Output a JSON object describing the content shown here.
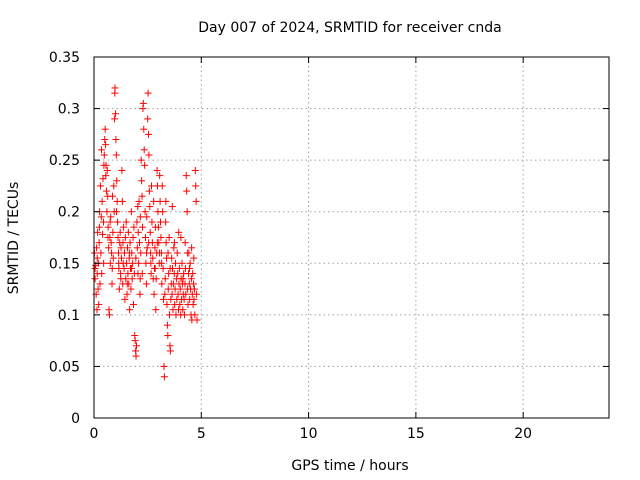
{
  "chart_data": {
    "type": "scatter",
    "title": "Day 007 of 2024, SRMTID for receiver cnda",
    "xlabel": "GPS time / hours",
    "ylabel": "SRMTID / TECUs",
    "xlim": [
      0,
      24
    ],
    "ylim": [
      0,
      0.35
    ],
    "xticks": [
      0,
      5,
      10,
      15,
      20
    ],
    "xtick_labels": [
      "0",
      "5",
      "10",
      "15",
      "20"
    ],
    "yticks": [
      0,
      0.05,
      0.1,
      0.15,
      0.2,
      0.25,
      0.3,
      0.35
    ],
    "ytick_labels": [
      "0",
      "0.05",
      "0.1",
      "0.15",
      "0.2",
      "0.25",
      "0.3",
      "0.35"
    ],
    "grid": true,
    "marker": "+",
    "series": [
      {
        "name": "cnda",
        "color": "#ff0000",
        "points": [
          [
            0.02,
            0.16
          ],
          [
            0.05,
            0.135
          ],
          [
            0.08,
            0.148
          ],
          [
            0.1,
            0.12
          ],
          [
            0.12,
            0.165
          ],
          [
            0.14,
            0.105
          ],
          [
            0.15,
            0.14
          ],
          [
            0.17,
            0.18
          ],
          [
            0.19,
            0.125
          ],
          [
            0.2,
            0.15
          ],
          [
            0.22,
            0.11
          ],
          [
            0.24,
            0.17
          ],
          [
            0.26,
            0.2
          ],
          [
            0.28,
            0.13
          ],
          [
            0.3,
            0.225
          ],
          [
            0.32,
            0.16
          ],
          [
            0.34,
            0.195
          ],
          [
            0.36,
            0.14
          ],
          [
            0.38,
            0.21
          ],
          [
            0.4,
            0.178
          ],
          [
            0.42,
            0.232
          ],
          [
            0.44,
            0.19
          ],
          [
            0.46,
            0.245
          ],
          [
            0.48,
            0.255
          ],
          [
            0.5,
            0.27
          ],
          [
            0.52,
            0.28
          ],
          [
            0.54,
            0.265
          ],
          [
            0.56,
            0.245
          ],
          [
            0.58,
            0.22
          ],
          [
            0.6,
            0.2
          ],
          [
            0.62,
            0.24
          ],
          [
            0.64,
            0.215
          ],
          [
            0.66,
            0.185
          ],
          [
            0.68,
            0.165
          ],
          [
            0.7,
            0.105
          ],
          [
            0.72,
            0.1
          ],
          [
            0.74,
            0.175
          ],
          [
            0.76,
            0.15
          ],
          [
            0.78,
            0.195
          ],
          [
            0.8,
            0.17
          ],
          [
            0.82,
            0.16
          ],
          [
            0.84,
            0.13
          ],
          [
            0.86,
            0.215
          ],
          [
            0.88,
            0.18
          ],
          [
            0.9,
            0.155
          ],
          [
            0.92,
            0.225
          ],
          [
            0.94,
            0.2
          ],
          [
            0.96,
            0.29
          ],
          [
            0.97,
            0.315
          ],
          [
            0.98,
            0.32
          ],
          [
            1.0,
            0.295
          ],
          [
            1.02,
            0.27
          ],
          [
            1.04,
            0.255
          ],
          [
            1.06,
            0.23
          ],
          [
            1.08,
            0.21
          ],
          [
            1.1,
            0.19
          ],
          [
            1.12,
            0.175
          ],
          [
            1.14,
            0.16
          ],
          [
            1.16,
            0.145
          ],
          [
            1.18,
            0.125
          ],
          [
            1.2,
            0.17
          ],
          [
            1.22,
            0.18
          ],
          [
            1.24,
            0.14
          ],
          [
            1.26,
            0.165
          ],
          [
            1.28,
            0.155
          ],
          [
            1.3,
            0.24
          ],
          [
            1.32,
            0.21
          ],
          [
            1.34,
            0.13
          ],
          [
            1.36,
            0.15
          ],
          [
            1.38,
            0.185
          ],
          [
            1.4,
            0.145
          ],
          [
            1.42,
            0.16
          ],
          [
            1.44,
            0.115
          ],
          [
            1.46,
            0.175
          ],
          [
            1.48,
            0.135
          ],
          [
            1.5,
            0.19
          ],
          [
            1.52,
            0.15
          ],
          [
            1.54,
            0.12
          ],
          [
            1.56,
            0.165
          ],
          [
            1.58,
            0.14
          ],
          [
            1.6,
            0.18
          ],
          [
            1.62,
            0.13
          ],
          [
            1.64,
            0.155
          ],
          [
            1.66,
            0.105
          ],
          [
            1.68,
            0.17
          ],
          [
            1.7,
            0.145
          ],
          [
            1.72,
            0.125
          ],
          [
            1.74,
            0.2
          ],
          [
            1.76,
            0.16
          ],
          [
            1.78,
            0.135
          ],
          [
            1.8,
            0.15
          ],
          [
            1.82,
            0.175
          ],
          [
            1.84,
            0.11
          ],
          [
            1.86,
            0.185
          ],
          [
            1.88,
            0.14
          ],
          [
            1.9,
            0.08
          ],
          [
            1.92,
            0.075
          ],
          [
            1.94,
            0.065
          ],
          [
            1.96,
            0.06
          ],
          [
            1.98,
            0.07
          ],
          [
            2.0,
            0.19
          ],
          [
            2.02,
            0.165
          ],
          [
            2.04,
            0.205
          ],
          [
            2.06,
            0.18
          ],
          [
            2.08,
            0.15
          ],
          [
            2.1,
            0.21
          ],
          [
            2.12,
            0.17
          ],
          [
            2.14,
            0.12
          ],
          [
            2.16,
            0.195
          ],
          [
            2.18,
            0.16
          ],
          [
            2.2,
            0.25
          ],
          [
            2.22,
            0.23
          ],
          [
            2.24,
            0.215
          ],
          [
            2.26,
            0.185
          ],
          [
            2.28,
            0.3
          ],
          [
            2.3,
            0.305
          ],
          [
            2.32,
            0.28
          ],
          [
            2.34,
            0.26
          ],
          [
            2.36,
            0.245
          ],
          [
            2.38,
            0.2
          ],
          [
            2.4,
            0.175
          ],
          [
            2.42,
            0.15
          ],
          [
            2.44,
            0.13
          ],
          [
            2.46,
            0.195
          ],
          [
            2.48,
            0.165
          ],
          [
            2.5,
            0.29
          ],
          [
            2.52,
            0.315
          ],
          [
            2.54,
            0.275
          ],
          [
            2.56,
            0.255
          ],
          [
            2.58,
            0.22
          ],
          [
            2.6,
            0.205
          ],
          [
            2.62,
            0.18
          ],
          [
            2.64,
            0.16
          ],
          [
            2.66,
            0.14
          ],
          [
            2.68,
            0.225
          ],
          [
            2.7,
            0.19
          ],
          [
            2.72,
            0.17
          ],
          [
            2.74,
            0.155
          ],
          [
            2.76,
            0.135
          ],
          [
            2.78,
            0.21
          ],
          [
            2.8,
            0.12
          ],
          [
            2.82,
            0.145
          ],
          [
            2.84,
            0.165
          ],
          [
            2.86,
            0.185
          ],
          [
            2.88,
            0.105
          ],
          [
            2.9,
            0.135
          ],
          [
            2.92,
            0.16
          ],
          [
            2.94,
            0.24
          ],
          [
            2.96,
            0.225
          ],
          [
            2.98,
            0.2
          ],
          [
            3.0,
            0.185
          ],
          [
            3.02,
            0.17
          ],
          [
            3.04,
            0.15
          ],
          [
            3.06,
            0.235
          ],
          [
            3.08,
            0.21
          ],
          [
            3.1,
            0.19
          ],
          [
            3.12,
            0.175
          ],
          [
            3.14,
            0.16
          ],
          [
            3.16,
            0.13
          ],
          [
            3.18,
            0.225
          ],
          [
            3.2,
            0.2
          ],
          [
            3.22,
            0.145
          ],
          [
            3.24,
            0.115
          ],
          [
            3.26,
            0.05
          ],
          [
            3.28,
            0.04
          ],
          [
            3.3,
            0.12
          ],
          [
            3.32,
            0.135
          ],
          [
            3.34,
            0.19
          ],
          [
            3.36,
            0.17
          ],
          [
            3.38,
            0.155
          ],
          [
            3.4,
            0.11
          ],
          [
            3.42,
            0.09
          ],
          [
            3.44,
            0.08
          ],
          [
            3.46,
            0.125
          ],
          [
            3.48,
            0.14
          ],
          [
            3.5,
            0.175
          ],
          [
            3.52,
            0.1
          ],
          [
            3.54,
            0.07
          ],
          [
            3.56,
            0.065
          ],
          [
            3.58,
            0.115
          ],
          [
            3.6,
            0.13
          ],
          [
            3.62,
            0.155
          ],
          [
            3.64,
            0.12
          ],
          [
            3.66,
            0.145
          ],
          [
            3.68,
            0.105
          ],
          [
            3.7,
            0.13
          ],
          [
            3.72,
            0.165
          ],
          [
            3.74,
            0.14
          ],
          [
            3.76,
            0.11
          ],
          [
            3.78,
            0.125
          ],
          [
            3.8,
            0.15
          ],
          [
            3.82,
            0.1
          ],
          [
            3.84,
            0.135
          ],
          [
            3.86,
            0.115
          ],
          [
            3.88,
            0.16
          ],
          [
            3.9,
            0.14
          ],
          [
            3.92,
            0.12
          ],
          [
            3.94,
            0.105
          ],
          [
            3.96,
            0.13
          ],
          [
            3.98,
            0.145
          ],
          [
            4.0,
            0.11
          ],
          [
            4.02,
            0.125
          ],
          [
            4.04,
            0.1
          ],
          [
            4.06,
            0.135
          ],
          [
            4.08,
            0.115
          ],
          [
            4.1,
            0.15
          ],
          [
            4.12,
            0.13
          ],
          [
            4.14,
            0.105
          ],
          [
            4.16,
            0.12
          ],
          [
            4.18,
            0.14
          ],
          [
            4.2,
            0.115
          ],
          [
            4.22,
            0.1
          ],
          [
            4.24,
            0.13
          ],
          [
            4.26,
            0.145
          ],
          [
            4.28,
            0.12
          ],
          [
            4.3,
            0.235
          ],
          [
            4.32,
            0.22
          ],
          [
            4.34,
            0.2
          ],
          [
            4.36,
            0.125
          ],
          [
            4.38,
            0.11
          ],
          [
            4.4,
            0.14
          ],
          [
            4.42,
            0.16
          ],
          [
            4.44,
            0.13
          ],
          [
            4.46,
            0.115
          ],
          [
            4.48,
            0.15
          ],
          [
            4.5,
            0.125
          ],
          [
            4.52,
            0.1
          ],
          [
            4.54,
            0.135
          ],
          [
            4.56,
            0.095
          ],
          [
            4.58,
            0.12
          ],
          [
            4.6,
            0.14
          ],
          [
            4.62,
            0.11
          ],
          [
            4.64,
            0.13
          ],
          [
            4.66,
            0.115
          ],
          [
            4.68,
            0.125
          ],
          [
            4.7,
            0.1
          ],
          [
            4.72,
            0.24
          ],
          [
            4.74,
            0.225
          ],
          [
            4.76,
            0.21
          ],
          [
            4.78,
            0.12
          ],
          [
            4.8,
            0.095
          ],
          [
            0.35,
            0.26
          ],
          [
            0.55,
            0.235
          ],
          [
            0.75,
            0.19
          ],
          [
            1.05,
            0.2
          ],
          [
            1.35,
            0.17
          ],
          [
            1.65,
            0.16
          ],
          [
            1.95,
            0.155
          ],
          [
            2.25,
            0.14
          ],
          [
            2.55,
            0.17
          ],
          [
            2.85,
            0.145
          ],
          [
            3.15,
            0.15
          ],
          [
            3.45,
            0.16
          ],
          [
            3.75,
            0.17
          ],
          [
            4.05,
            0.175
          ],
          [
            4.35,
            0.16
          ],
          [
            4.65,
            0.155
          ],
          [
            0.45,
            0.15
          ],
          [
            0.85,
            0.145
          ],
          [
            1.25,
            0.135
          ],
          [
            1.75,
            0.145
          ],
          [
            2.15,
            0.135
          ],
          [
            2.65,
            0.15
          ],
          [
            3.05,
            0.16
          ],
          [
            3.55,
            0.145
          ],
          [
            4.15,
            0.135
          ],
          [
            4.45,
            0.145
          ],
          [
            0.25,
            0.185
          ],
          [
            0.65,
            0.175
          ],
          [
            1.15,
            0.15
          ],
          [
            1.55,
            0.13
          ],
          [
            2.05,
            0.14
          ],
          [
            2.45,
            0.16
          ],
          [
            2.95,
            0.17
          ],
          [
            3.35,
            0.21
          ],
          [
            3.65,
            0.205
          ],
          [
            3.95,
            0.18
          ],
          [
            4.25,
            0.17
          ],
          [
            4.55,
            0.165
          ],
          [
            0.15,
            0.155
          ],
          [
            0.05,
            0.145
          ]
        ]
      }
    ]
  }
}
